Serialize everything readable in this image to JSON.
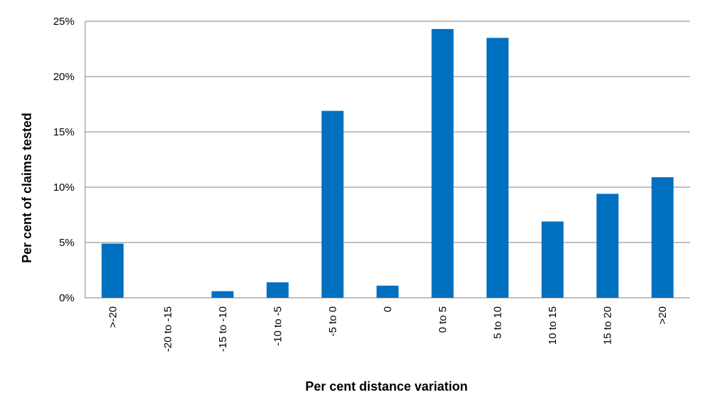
{
  "chart_data": {
    "type": "bar",
    "title": "",
    "xlabel": "Per cent distance variation",
    "ylabel": "Per cent of claims tested",
    "categories": [
      ">-20",
      "-20 to -15",
      "-15 to -10",
      "-10 to -5",
      "-5 to 0",
      "0",
      "0 to 5",
      "5 to 10",
      "10 to 15",
      "15 to 20",
      ">20"
    ],
    "values": [
      4.9,
      0.0,
      0.6,
      1.4,
      16.9,
      1.1,
      24.3,
      23.5,
      6.9,
      9.4,
      10.9
    ],
    "ylim": [
      0,
      25
    ],
    "yticks": [
      0,
      5,
      10,
      15,
      20,
      25
    ],
    "ytick_labels": [
      "0%",
      "5%",
      "10%",
      "15%",
      "20%",
      "25%"
    ],
    "grid": true,
    "legend": "none",
    "bar_color": "#0070C0",
    "grid_color": "#808080"
  }
}
